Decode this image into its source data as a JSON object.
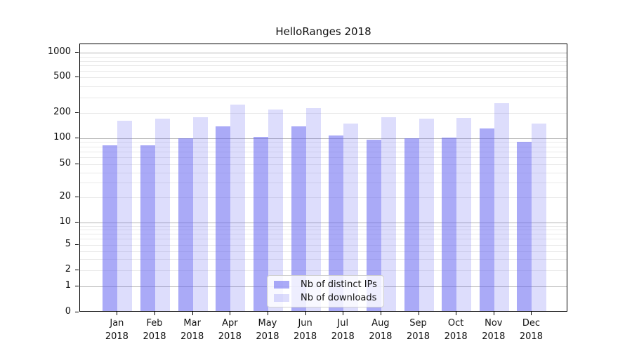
{
  "figure": {
    "title": "HelloRanges 2018"
  },
  "chart_data": {
    "type": "bar",
    "title": "HelloRanges 2018",
    "categories": [
      "Jan 2018",
      "Feb 2018",
      "Mar 2018",
      "Apr 2018",
      "May 2018",
      "Jun 2018",
      "Jul 2018",
      "Aug 2018",
      "Sep 2018",
      "Oct 2018",
      "Nov 2018",
      "Dec 2018"
    ],
    "x_tick_line1": [
      "Jan",
      "Feb",
      "Mar",
      "Apr",
      "May",
      "Jun",
      "Jul",
      "Aug",
      "Sep",
      "Oct",
      "Nov",
      "Dec"
    ],
    "x_tick_line2": "2018",
    "series": [
      {
        "name": "Nb of distinct IPs",
        "color": "rgba(100,100,240,0.55)",
        "values": [
          80,
          80,
          95,
          134,
          100,
          134,
          103,
          93,
          95,
          98,
          125,
          88
        ]
      },
      {
        "name": "Nb of downloads",
        "color": "rgba(100,100,240,0.22)",
        "values": [
          155,
          165,
          170,
          240,
          210,
          220,
          145,
          170,
          164,
          167,
          250,
          145
        ]
      }
    ],
    "xlabel": "",
    "ylabel": "",
    "yscale": "symlog",
    "yticks": [
      0,
      1,
      2,
      5,
      10,
      20,
      50,
      100,
      200,
      500,
      1000
    ],
    "ylim": [
      0,
      1100
    ],
    "grid": true,
    "legend_position": "lower center"
  },
  "legend": {
    "items": [
      {
        "label": "Nb of distinct IPs"
      },
      {
        "label": "Nb of downloads"
      }
    ]
  },
  "colors": {
    "bar_distinct_ips": "rgba(100,100,240,0.55)",
    "bar_downloads": "rgba(100,100,240,0.22)",
    "grid_major": "#b4b4b4",
    "grid_minor": "#e9e9e9",
    "axis": "#000000",
    "text": "#111111"
  }
}
